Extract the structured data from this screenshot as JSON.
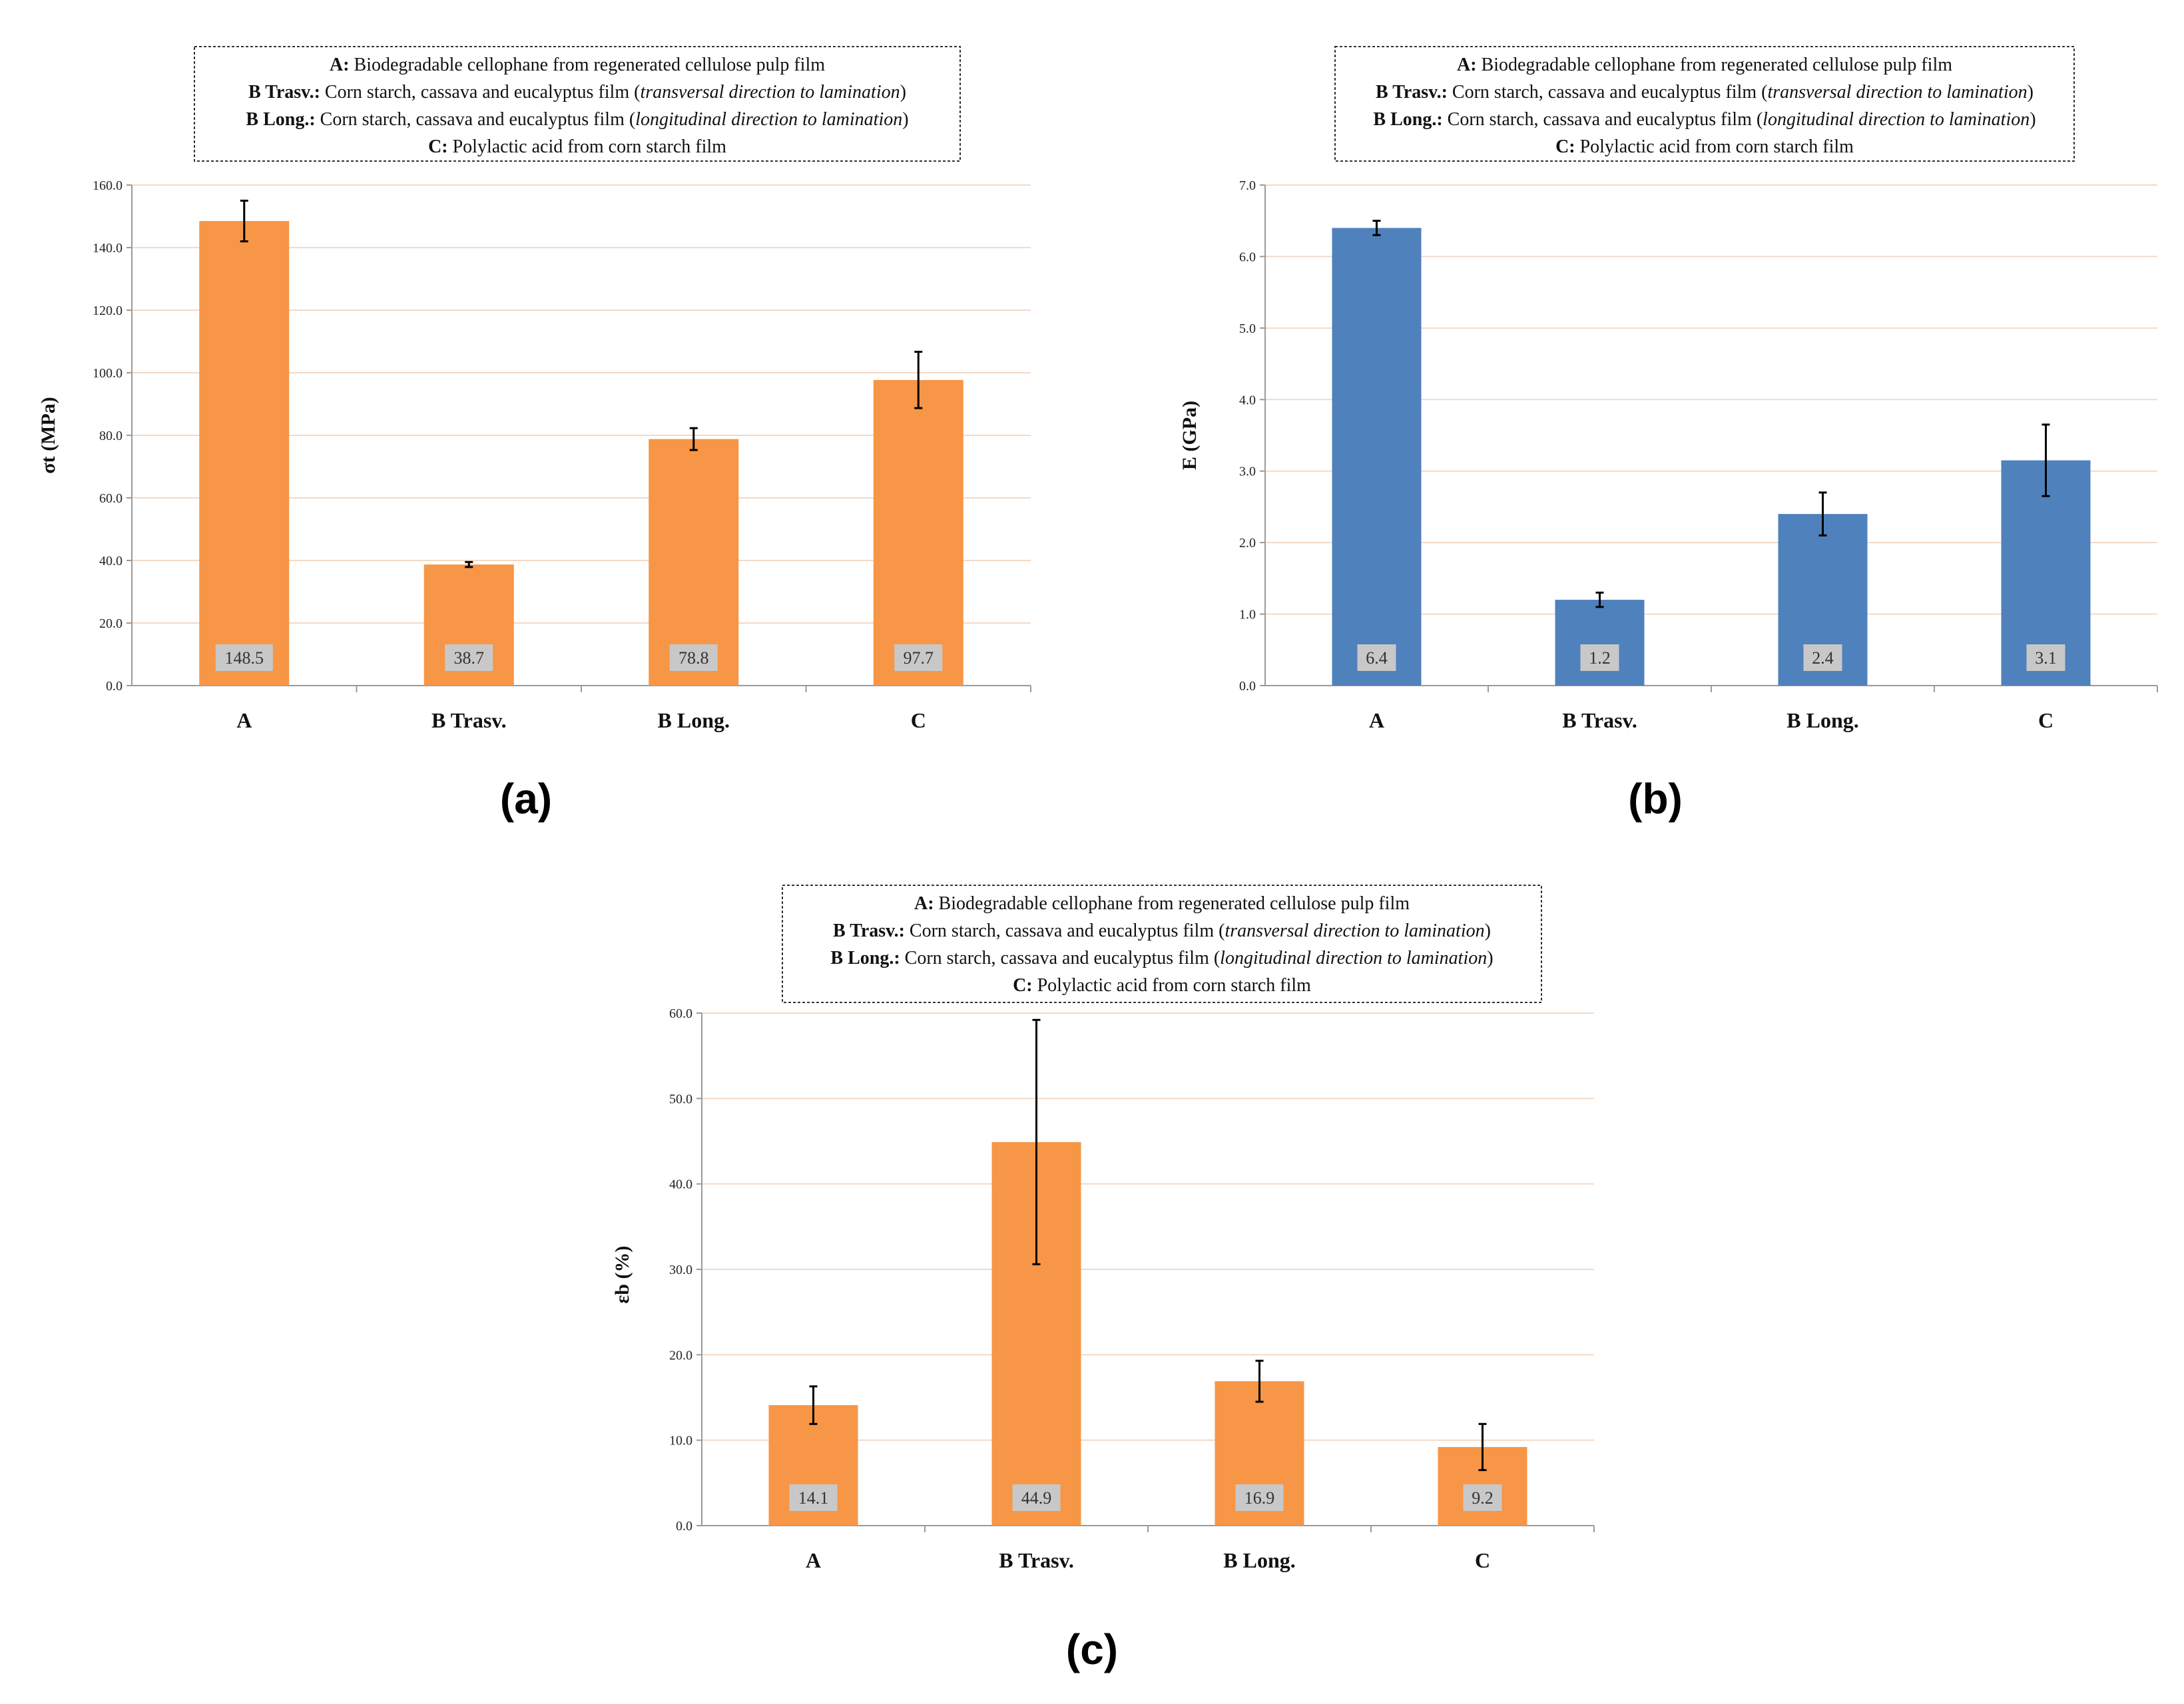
{
  "legend": {
    "lines": [
      {
        "key": "A:",
        "text": " Biodegradable cellophane  from regenerated cellulose pulp film",
        "italic": "",
        "tail": ""
      },
      {
        "key": "B Trasv.:",
        "text": " Corn starch, cassava and eucalyptus film (",
        "italic": "transversal direction to lamination",
        "tail": ")"
      },
      {
        "key": "B Long.:",
        "text": " Corn starch, cassava and eucalyptus film (",
        "italic": "longitudinal direction to lamination",
        "tail": ")"
      },
      {
        "key": "C:",
        "text": " Polylactic acid  from corn starch film",
        "italic": "",
        "tail": ""
      }
    ]
  },
  "colors": {
    "orange": "#f79646",
    "blue": "#4f81bd"
  },
  "chart_data": [
    {
      "id": "a",
      "panel_label": "(a)",
      "type": "bar",
      "ylabel": "σt (MPa)",
      "categories": [
        "A",
        "B Trasv.",
        "B Long.",
        "C"
      ],
      "values": [
        148.5,
        38.7,
        78.8,
        97.7
      ],
      "errors": [
        6.5,
        0.8,
        3.5,
        9.0
      ],
      "data_labels": [
        "148.5",
        "38.7",
        "78.8",
        "97.7"
      ],
      "ylim": [
        0,
        160
      ],
      "yticks": [
        "0.0",
        "20.0",
        "40.0",
        "60.0",
        "80.0",
        "100.0",
        "120.0",
        "140.0",
        "160.0"
      ],
      "color": "orange"
    },
    {
      "id": "b",
      "panel_label": "(b)",
      "type": "bar",
      "ylabel": "E (GPa)",
      "categories": [
        "A",
        "B Trasv.",
        "B Long.",
        "C"
      ],
      "values": [
        6.4,
        1.2,
        2.4,
        3.15
      ],
      "errors": [
        0.1,
        0.1,
        0.3,
        0.5
      ],
      "data_labels": [
        "6.4",
        "1.2",
        "2.4",
        "3.1"
      ],
      "ylim": [
        0,
        7
      ],
      "yticks": [
        "0.0",
        "1.0",
        "2.0",
        "3.0",
        "4.0",
        "5.0",
        "6.0",
        "7.0"
      ],
      "color": "blue"
    },
    {
      "id": "c",
      "panel_label": "(c)",
      "type": "bar",
      "ylabel": "εb (%)",
      "categories": [
        "A",
        "B Trasv.",
        "B Long.",
        "C"
      ],
      "values": [
        14.1,
        44.9,
        16.9,
        9.2
      ],
      "errors": [
        2.2,
        14.3,
        2.4,
        2.7
      ],
      "data_labels": [
        "14.1",
        "44.9",
        "16.9",
        "9.2"
      ],
      "ylim": [
        0,
        60
      ],
      "yticks": [
        "0.0",
        "10.0",
        "20.0",
        "30.0",
        "40.0",
        "50.0",
        "60.0"
      ],
      "color": "orange"
    }
  ]
}
